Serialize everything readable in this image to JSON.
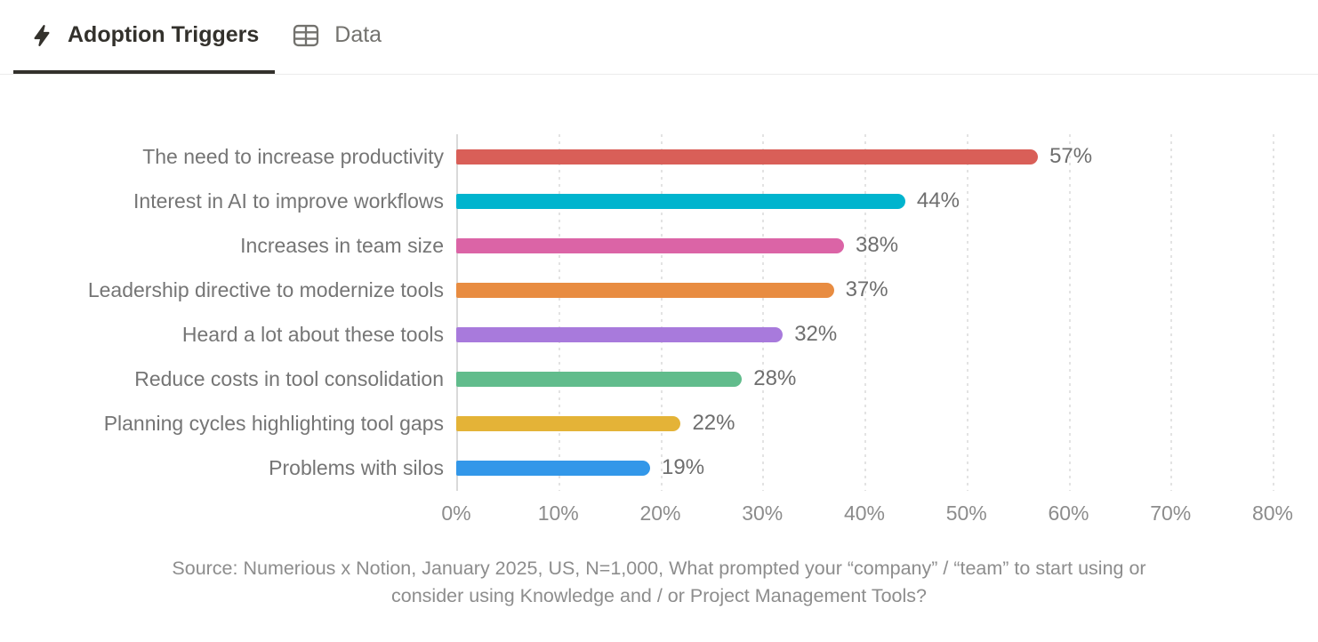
{
  "tabs": [
    {
      "label": "Adoption Triggers",
      "icon": "lightning-bolt-icon",
      "active": true
    },
    {
      "label": "Data",
      "icon": "table-icon",
      "active": false
    }
  ],
  "chart_data": {
    "type": "bar",
    "orientation": "horizontal",
    "title": "Adoption Triggers",
    "categories": [
      "The need to increase productivity",
      "Interest in AI to improve workflows",
      "Increases in team size",
      "Leadership directive to modernize tools",
      "Heard a lot about these tools",
      "Reduce costs in tool consolidation",
      "Planning cycles highlighting tool gaps",
      "Problems with silos"
    ],
    "values": [
      57,
      44,
      38,
      37,
      32,
      28,
      22,
      19
    ],
    "value_labels": [
      "57%",
      "44%",
      "38%",
      "37%",
      "32%",
      "28%",
      "22%",
      "19%"
    ],
    "bar_colors": [
      "#D95F58",
      "#00B4CE",
      "#DB64A6",
      "#E88C41",
      "#A87ADC",
      "#61BC8C",
      "#E4B337",
      "#3297E9"
    ],
    "x_ticks": [
      "0%",
      "10%",
      "20%",
      "30%",
      "40%",
      "50%",
      "60%",
      "70%",
      "80%"
    ],
    "xlim": [
      0,
      80
    ],
    "grid": "dotted-vertical",
    "legend": "none"
  },
  "source": {
    "line1": "Source: Numerious x Notion, January 2025, US, N=1,000, What prompted your “company” / “team” to start using or",
    "line2": "consider using Knowledge and / or Project Management Tools?"
  },
  "colors": {
    "tab_active": "#33312C",
    "tab_inactive": "#73726E",
    "tab_divider": "#ECECEB",
    "axis_line": "#D9D9D9",
    "gridline": "#E3E3E3",
    "category_label": "#757575",
    "value_label": "#6E6E6E",
    "tick_label": "#8C8C8C",
    "source_text": "#8D8D8D"
  }
}
